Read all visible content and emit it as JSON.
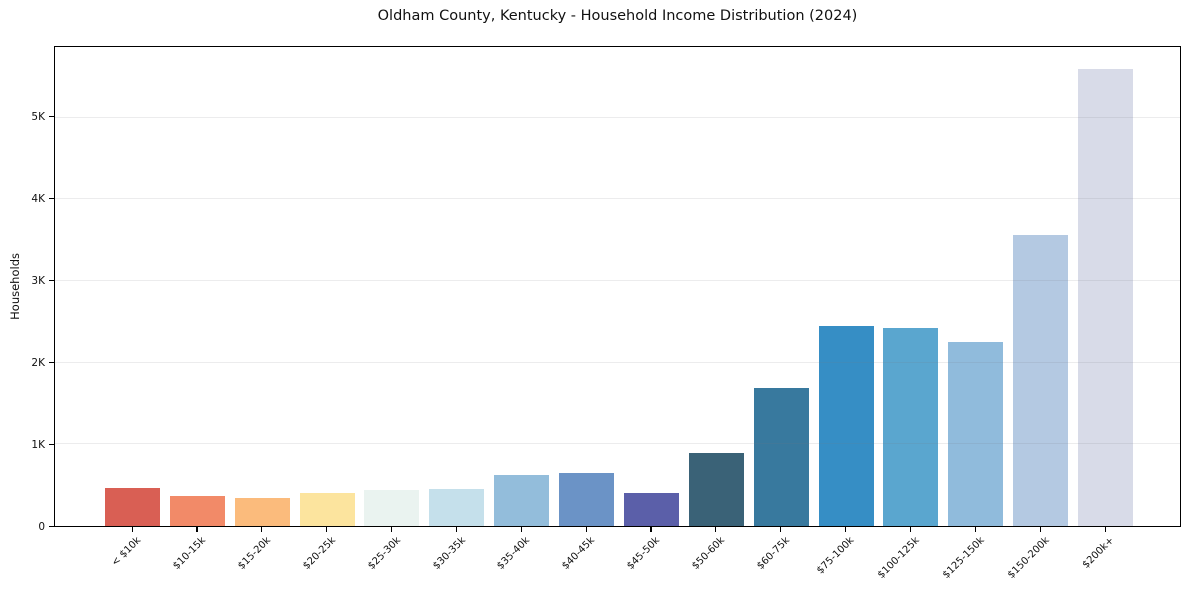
{
  "figure": {
    "background": "#ffffff",
    "frame_color": "#000000",
    "grid_color": "#e8e8e8",
    "text_color": "#111111"
  },
  "chart_data": {
    "type": "bar",
    "title": "Oldham County, Kentucky - Household Income Distribution (2024)",
    "xlabel": "",
    "ylabel": "Households",
    "categories": [
      "< $10k",
      "$10-15k",
      "$15-20k",
      "$20-25k",
      "$25-30k",
      "$30-35k",
      "$35-40k",
      "$40-45k",
      "$45-50k",
      "$50-60k",
      "$60-75k",
      "$75-100k",
      "$100-125k",
      "$125-150k",
      "$150-200k",
      "$200k+"
    ],
    "values": [
      470,
      365,
      340,
      400,
      435,
      450,
      620,
      650,
      410,
      890,
      1690,
      2450,
      2430,
      2250,
      3570,
      5600
    ],
    "bar_colors": [
      "#d95f54",
      "#f28a68",
      "#fbbb7c",
      "#fce49e",
      "#eaf3f0",
      "#c5e0eb",
      "#93bddb",
      "#6b93c6",
      "#5b5fa9",
      "#3a6277",
      "#38799e",
      "#368ec5",
      "#5aa6cf",
      "#90bbdc",
      "#b4c9e2",
      "#d8dbe8"
    ],
    "ylim": [
      0,
      5866
    ],
    "yticks": [
      {
        "value": 0,
        "label": "0"
      },
      {
        "value": 1000,
        "label": "1K"
      },
      {
        "value": 2000,
        "label": "2K"
      },
      {
        "value": 3000,
        "label": "3K"
      },
      {
        "value": 4000,
        "label": "4K"
      },
      {
        "value": 5000,
        "label": "5K"
      }
    ],
    "grid": "horizontal",
    "legend": null
  }
}
